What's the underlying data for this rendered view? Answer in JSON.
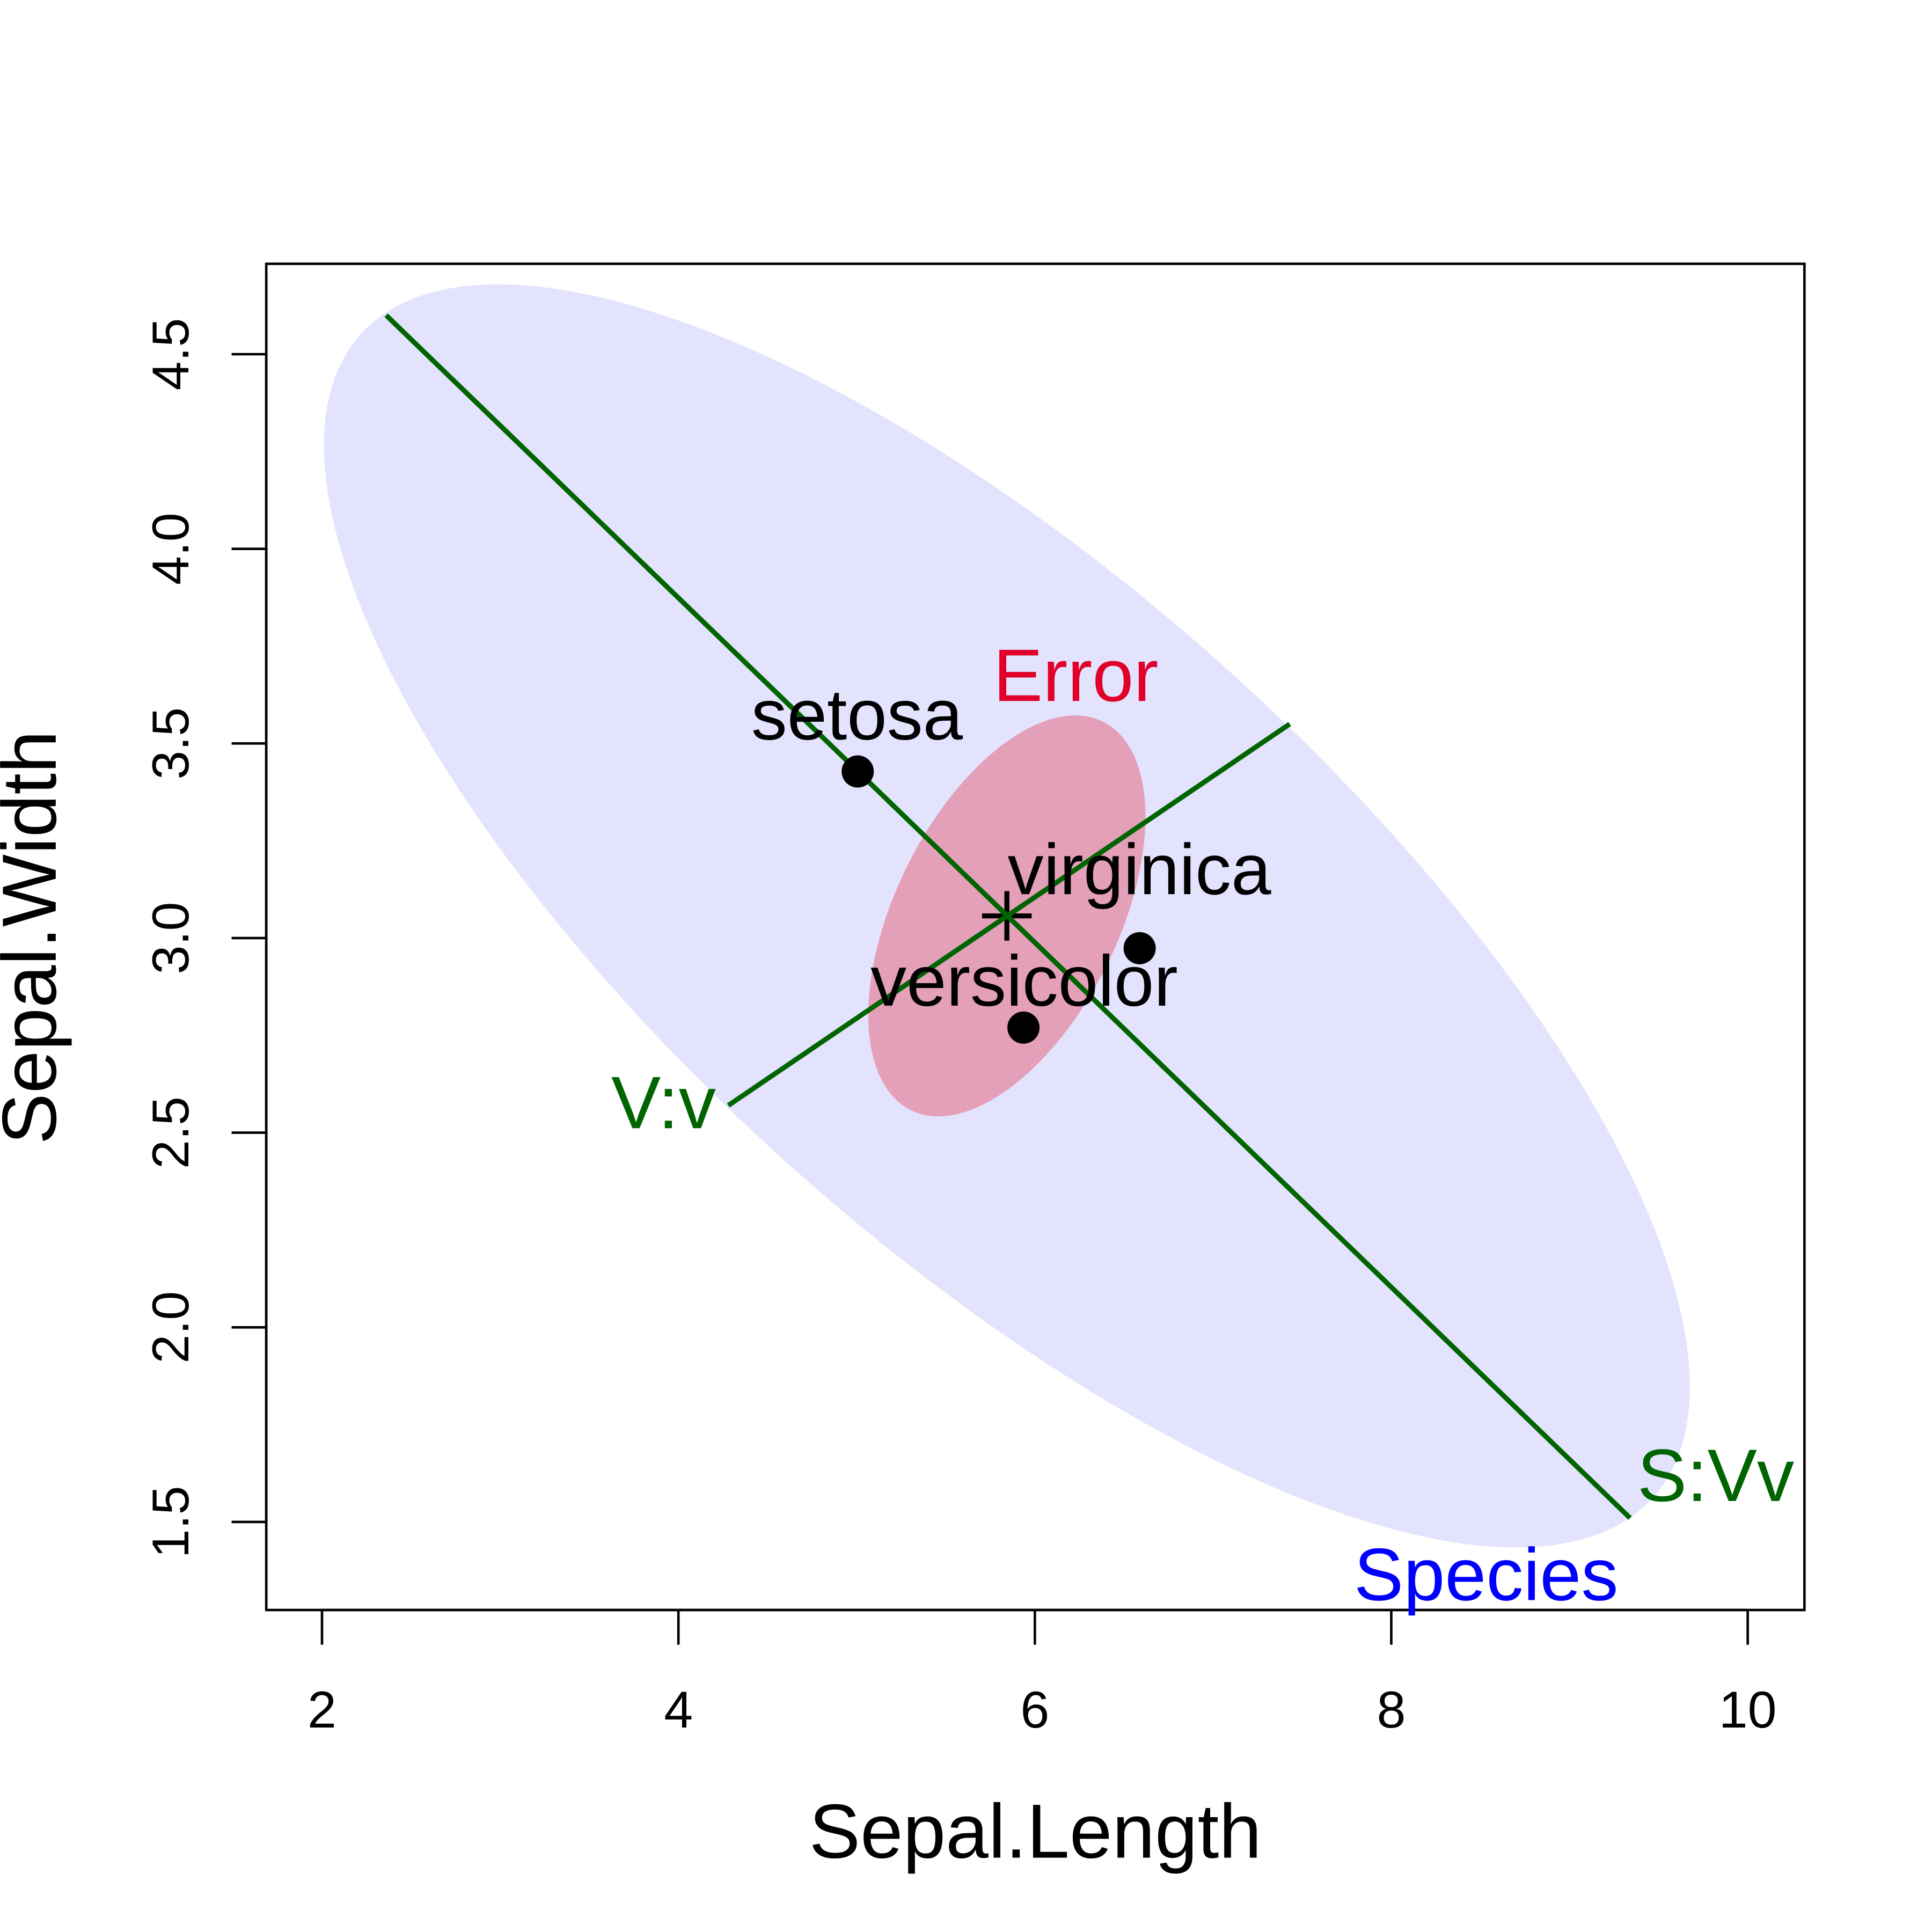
{
  "chart_data": {
    "type": "scatter",
    "title": "",
    "xlabel": "Sepal.Length",
    "ylabel": "Sepal.Width",
    "xlim": [
      1.6,
      10.3
    ],
    "ylim": [
      1.28,
      4.74
    ],
    "xticks": [
      2,
      4,
      6,
      8,
      10
    ],
    "xtick_labels": [
      "2",
      "4",
      "6",
      "8",
      "10"
    ],
    "yticks": [
      1.5,
      2.0,
      2.5,
      3.0,
      3.5,
      4.0,
      4.5
    ],
    "ytick_labels": [
      "1.5",
      "2.0",
      "2.5",
      "3.0",
      "3.5",
      "4.0",
      "4.5"
    ],
    "grand_mean": {
      "x": 5.843,
      "y": 3.057
    },
    "points": [
      {
        "label": "setosa",
        "x": 5.006,
        "y": 3.428
      },
      {
        "label": "versicolor",
        "x": 5.936,
        "y": 2.77
      },
      {
        "label": "virginica",
        "x": 6.588,
        "y": 2.974
      }
    ],
    "ellipses": [
      {
        "label": "Species",
        "color": "#0000FF",
        "fill": "#E3E3FE"
      },
      {
        "label": "Error",
        "color": "#E0002A",
        "fill": "#E4A0B8"
      }
    ],
    "vectors": [
      {
        "label": "S:Vv",
        "from": {
          "x": 2.36,
          "y": 4.6
        },
        "to": {
          "x": 9.34,
          "y": 1.51
        },
        "color": "#006400"
      },
      {
        "label": "V:v",
        "from": {
          "x": 4.28,
          "y": 2.57
        },
        "to": {
          "x": 7.43,
          "y": 3.55
        },
        "color": "#006400"
      }
    ]
  }
}
